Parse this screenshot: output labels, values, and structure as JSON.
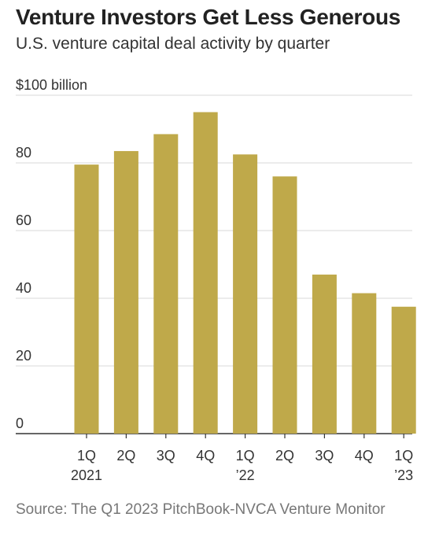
{
  "header": {
    "title": "Venture Investors Get Less Generous",
    "subtitle": "U.S. venture capital deal activity by quarter"
  },
  "chart_data": {
    "type": "bar",
    "title": "Venture Investors Get Less Generous",
    "subtitle": "U.S. venture capital deal activity by quarter",
    "ylabel": "$100 billion",
    "y_ticks": [
      "$100 billion",
      "80",
      "60",
      "40",
      "20",
      "0"
    ],
    "categories": [
      "1Q 2021",
      "2Q",
      "3Q",
      "4Q",
      "1Q '22",
      "2Q",
      "3Q",
      "4Q",
      "1Q '23"
    ],
    "x_tick_lines": [
      [
        "1Q",
        "2021"
      ],
      [
        "2Q"
      ],
      [
        "3Q"
      ],
      [
        "4Q"
      ],
      [
        "1Q",
        "’22"
      ],
      [
        "2Q"
      ],
      [
        "3Q"
      ],
      [
        "4Q"
      ],
      [
        "1Q",
        "’23"
      ]
    ],
    "values": [
      79.5,
      83.5,
      88.5,
      95.0,
      82.5,
      76.0,
      47.0,
      41.5,
      37.5
    ],
    "ylim": [
      0,
      100
    ],
    "grid": true,
    "legend": "none",
    "bar_color": "#bfa94a"
  },
  "footer": {
    "source": "Source: The Q1 2023 PitchBook-NVCA Venture Monitor"
  }
}
